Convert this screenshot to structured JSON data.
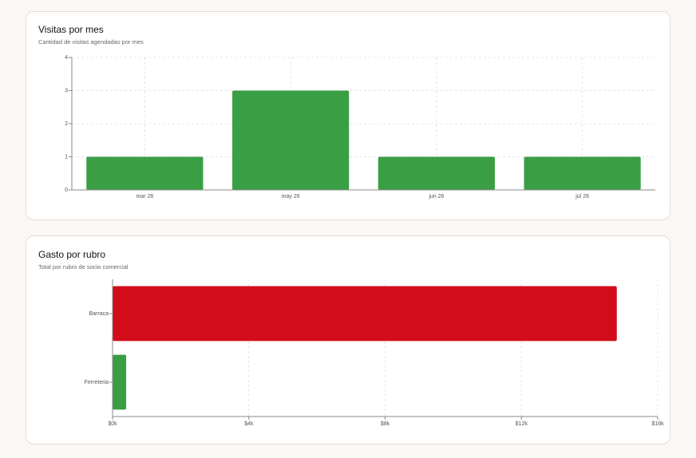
{
  "chart_data": [
    {
      "type": "bar",
      "orientation": "vertical",
      "title": "Visitas por mes",
      "subtitle": "Cantidad de visitas agendadas por mes",
      "categories": [
        "mar 26",
        "may 26",
        "jun 26",
        "jul 26"
      ],
      "values": [
        1,
        3,
        1,
        1
      ],
      "color": "#3a9e45",
      "ylim": [
        0,
        4
      ],
      "yticks": [
        0,
        1,
        2,
        3,
        4
      ],
      "grid": true
    },
    {
      "type": "bar",
      "orientation": "horizontal",
      "title": "Gasto por rubro",
      "subtitle": "Total por rubro de socio comercial",
      "categories": [
        "Barraca",
        "Ferreteria"
      ],
      "values": [
        14800,
        400
      ],
      "colors": [
        "#d20c1a",
        "#3a9e45"
      ],
      "xlim": [
        0,
        16000
      ],
      "xticks": [
        {
          "value": 0,
          "label": "$0k"
        },
        {
          "value": 4000,
          "label": "$4k"
        },
        {
          "value": 8000,
          "label": "$8k"
        },
        {
          "value": 12000,
          "label": "$12k"
        },
        {
          "value": 16000,
          "label": "$16k"
        }
      ],
      "grid": true
    }
  ]
}
